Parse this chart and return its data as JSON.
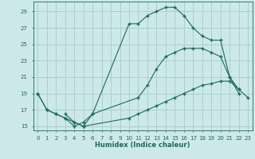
{
  "xlabel": "Humidex (Indice chaleur)",
  "background_color": "#cce8e8",
  "grid_color": "#aacece",
  "line_color": "#1a6b5a",
  "xlim": [
    -0.5,
    23.5
  ],
  "ylim": [
    14.5,
    30.2
  ],
  "xticks": [
    0,
    1,
    2,
    3,
    4,
    5,
    6,
    7,
    8,
    9,
    10,
    11,
    12,
    13,
    14,
    15,
    16,
    17,
    18,
    19,
    20,
    21,
    22,
    23
  ],
  "yticks": [
    15,
    17,
    19,
    21,
    23,
    25,
    27,
    29
  ],
  "curve1_x": [
    0,
    1,
    2,
    3,
    4,
    5,
    6,
    10,
    11,
    12,
    13,
    14,
    15,
    16,
    17,
    18,
    19,
    20,
    21,
    22
  ],
  "curve1_y": [
    19,
    17,
    16.5,
    16,
    15,
    15.5,
    16.5,
    27.5,
    27.5,
    28.5,
    29,
    29.5,
    29.5,
    28.5,
    27,
    26,
    25.5,
    25.5,
    21,
    19
  ],
  "curve2_x": [
    3,
    4,
    5,
    6,
    11,
    12,
    13,
    14,
    15,
    16,
    17,
    18,
    19,
    20,
    21,
    22
  ],
  "curve2_y": [
    16.5,
    15.5,
    15,
    16.5,
    18.5,
    20,
    22,
    23.5,
    24,
    24.5,
    24.5,
    24.5,
    24,
    23.5,
    21,
    19.5
  ],
  "curve3_x": [
    0,
    1,
    2,
    3,
    4,
    5,
    10,
    11,
    12,
    13,
    14,
    15,
    16,
    17,
    18,
    19,
    20,
    21,
    22,
    23
  ],
  "curve3_y": [
    19,
    17,
    16.5,
    16,
    15.5,
    15,
    16,
    16.5,
    17,
    17.5,
    18,
    18.5,
    19,
    19.5,
    20,
    20.2,
    20.5,
    20.5,
    19.5,
    18.5
  ]
}
